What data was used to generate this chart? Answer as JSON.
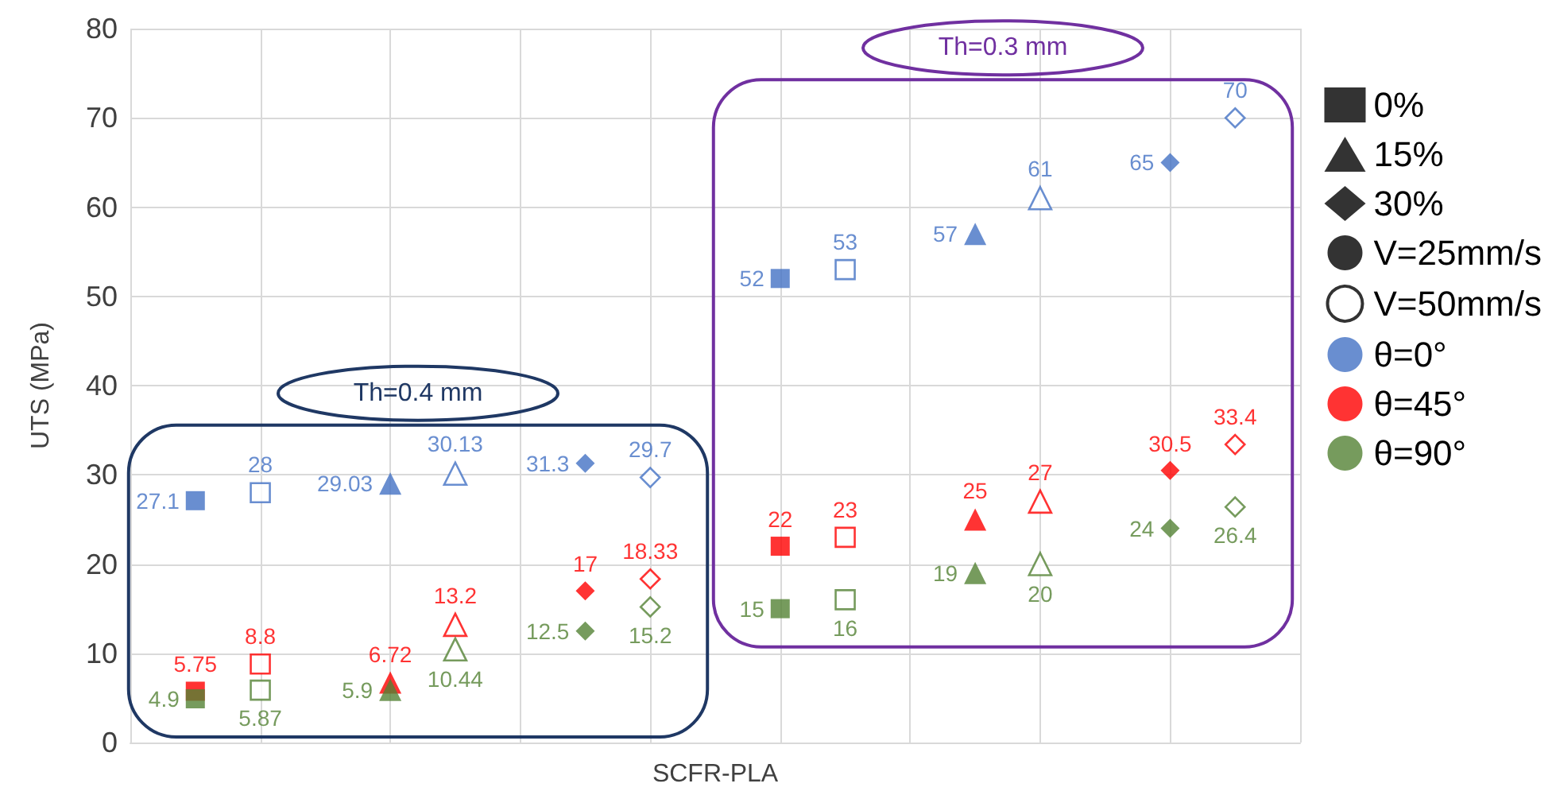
{
  "chart_data": {
    "type": "scatter",
    "xlabel": "SCFR-PLA",
    "ylabel": "UTS (MPa)",
    "categories": [
      null,
      null,
      null,
      null,
      null,
      null,
      null,
      null,
      null,
      null,
      null,
      null,
      null,
      null,
      null,
      null,
      null,
      null,
      null
    ],
    "ylim": [
      0,
      80
    ],
    "yticks": [
      0,
      10,
      20,
      30,
      40,
      50,
      60,
      70,
      80
    ],
    "grid": true,
    "tick_labels": "y",
    "legend": "right",
    "data_labels": true,
    "annotations": [
      "Th=0.4 mm",
      "Th=0.3 mm"
    ],
    "series": [
      {
        "color": "#4472c4",
        "marker": "square",
        "values": [
          null,
          27.1,
          null,
          null,
          null,
          null,
          null,
          null,
          null,
          null,
          52,
          null,
          null,
          null,
          null,
          null,
          null,
          null,
          null
        ]
      },
      {
        "color": "#ff0000",
        "marker": "square",
        "values": [
          null,
          5.75,
          null,
          null,
          null,
          null,
          null,
          null,
          null,
          null,
          22,
          null,
          null,
          null,
          null,
          null,
          null,
          null,
          null
        ]
      },
      {
        "color": "#548235",
        "marker": "square",
        "values": [
          null,
          4.9,
          null,
          null,
          null,
          null,
          null,
          null,
          null,
          null,
          15,
          null,
          null,
          null,
          null,
          null,
          null,
          null,
          null
        ]
      },
      {
        "color": "#4472c4",
        "marker": "square-open",
        "values": [
          null,
          null,
          28,
          null,
          null,
          null,
          null,
          null,
          null,
          null,
          null,
          53,
          null,
          null,
          null,
          null,
          null,
          null,
          null
        ]
      },
      {
        "color": "#ff0000",
        "marker": "square-open",
        "values": [
          null,
          null,
          8.8,
          null,
          null,
          null,
          null,
          null,
          null,
          null,
          null,
          23,
          null,
          null,
          null,
          null,
          null,
          null,
          null
        ]
      },
      {
        "color": "#548235",
        "marker": "square-open",
        "values": [
          null,
          null,
          5.87,
          null,
          null,
          null,
          null,
          null,
          null,
          null,
          null,
          16,
          null,
          null,
          null,
          null,
          null,
          null,
          null
        ]
      },
      {
        "color": "#4472c4",
        "marker": "triangle",
        "values": [
          null,
          null,
          null,
          null,
          29.03,
          null,
          null,
          null,
          null,
          null,
          null,
          null,
          null,
          57,
          null,
          null,
          null,
          null,
          null
        ]
      },
      {
        "color": "#ff0000",
        "marker": "triangle",
        "values": [
          null,
          null,
          null,
          null,
          6.72,
          null,
          null,
          null,
          null,
          null,
          null,
          null,
          null,
          25,
          null,
          null,
          null,
          null,
          null
        ]
      },
      {
        "color": "#548235",
        "marker": "triangle",
        "values": [
          null,
          null,
          null,
          null,
          5.9,
          null,
          null,
          null,
          null,
          null,
          null,
          null,
          null,
          19,
          null,
          null,
          null,
          null,
          null
        ]
      },
      {
        "color": "#4472c4",
        "marker": "triangle-open",
        "values": [
          null,
          null,
          null,
          null,
          null,
          30.13,
          null,
          null,
          null,
          null,
          null,
          null,
          null,
          null,
          61,
          null,
          null,
          null,
          null
        ]
      },
      {
        "color": "#ff0000",
        "marker": "triangle-open",
        "values": [
          null,
          null,
          null,
          null,
          null,
          13.2,
          null,
          null,
          null,
          null,
          null,
          null,
          null,
          null,
          27,
          null,
          null,
          null,
          null
        ]
      },
      {
        "color": "#548235",
        "marker": "triangle-open",
        "values": [
          null,
          null,
          null,
          null,
          null,
          10.44,
          null,
          null,
          null,
          null,
          null,
          null,
          null,
          null,
          20,
          null,
          null,
          null,
          null
        ]
      },
      {
        "color": "#4472c4",
        "marker": "diamond",
        "values": [
          null,
          null,
          null,
          null,
          null,
          null,
          null,
          31.3,
          null,
          null,
          null,
          null,
          null,
          null,
          null,
          null,
          65,
          null,
          null
        ]
      },
      {
        "color": "#ff0000",
        "marker": "diamond",
        "values": [
          null,
          null,
          null,
          null,
          null,
          null,
          null,
          17,
          null,
          null,
          null,
          null,
          null,
          null,
          null,
          null,
          30.5,
          null,
          null
        ]
      },
      {
        "color": "#548235",
        "marker": "diamond",
        "values": [
          null,
          null,
          null,
          null,
          null,
          null,
          null,
          12.5,
          null,
          null,
          null,
          null,
          null,
          null,
          null,
          null,
          24,
          null,
          null
        ]
      },
      {
        "color": "#4472c4",
        "marker": "diamond-open",
        "values": [
          null,
          null,
          null,
          null,
          null,
          null,
          null,
          null,
          29.7,
          null,
          null,
          null,
          null,
          null,
          null,
          null,
          null,
          70,
          null
        ]
      },
      {
        "color": "#ff0000",
        "marker": "diamond-open",
        "values": [
          null,
          null,
          null,
          null,
          null,
          null,
          null,
          null,
          18.33,
          null,
          null,
          null,
          null,
          null,
          null,
          null,
          null,
          33.4,
          null
        ]
      },
      {
        "color": "#548235",
        "marker": "diamond-open",
        "values": [
          null,
          null,
          null,
          null,
          null,
          null,
          null,
          null,
          15.2,
          null,
          null,
          null,
          null,
          null,
          null,
          null,
          null,
          26.4,
          null
        ]
      },
      {
        "name": "0%",
        "color": "#000000",
        "marker": "square",
        "values": [
          null,
          null,
          null,
          null,
          null,
          null,
          null,
          null,
          null,
          null,
          null,
          null,
          null,
          null,
          null,
          null,
          null,
          null,
          null
        ]
      },
      {
        "name": "15%",
        "color": "#000000",
        "marker": "triangle",
        "values": [
          null,
          null,
          null,
          null,
          null,
          null,
          null,
          null,
          null,
          null,
          null,
          null,
          null,
          null,
          null,
          null,
          null,
          null,
          null
        ]
      },
      {
        "name": "30%",
        "color": "#000000",
        "marker": "diamond",
        "values": [
          null,
          null,
          null,
          null,
          null,
          null,
          null,
          null,
          null,
          null,
          null,
          null,
          null,
          null,
          null,
          null,
          null,
          null,
          null
        ]
      },
      {
        "name": "V=25mm/s",
        "color": "#000000",
        "marker": "circle",
        "values": [
          null,
          null,
          null,
          null,
          null,
          null,
          null,
          null,
          null,
          null,
          null,
          null,
          null,
          null,
          null,
          null,
          null,
          null,
          null
        ]
      },
      {
        "name": "V=50mm/s",
        "color": "#000000",
        "marker": "circle-open",
        "values": [
          null,
          null,
          null,
          null,
          null,
          null,
          null,
          null,
          null,
          null,
          null,
          null,
          null,
          null,
          null,
          null,
          null,
          null,
          null
        ]
      },
      {
        "name": "θ=0°",
        "color": "#4472c4",
        "marker": "circle",
        "values": [
          null,
          null,
          null,
          null,
          null,
          null,
          null,
          null,
          null,
          null,
          null,
          null,
          null,
          null,
          null,
          null,
          null,
          null,
          null
        ]
      },
      {
        "name": "θ=45°",
        "color": "#ff0000",
        "marker": "circle",
        "values": [
          null,
          null,
          null,
          null,
          null,
          null,
          null,
          null,
          null,
          null,
          null,
          null,
          null,
          null,
          null,
          null,
          null,
          null,
          null
        ]
      },
      {
        "name": "θ=90°",
        "color": "#548235",
        "marker": "circle",
        "values": [
          null,
          null,
          null,
          null,
          null,
          null,
          null,
          null,
          null,
          null,
          null,
          null,
          null,
          null,
          null,
          null,
          null,
          null,
          null
        ]
      }
    ]
  }
}
